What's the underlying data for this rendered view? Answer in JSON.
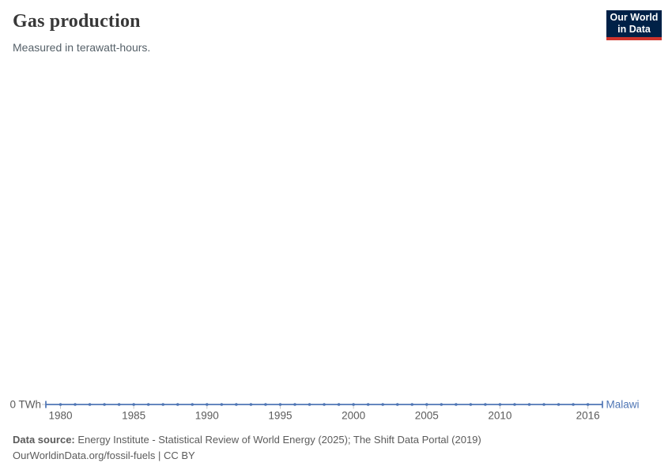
{
  "logo": {
    "line1": "Our World",
    "line2": "in Data",
    "bg_color": "#002147",
    "accent_color": "#d0342c"
  },
  "chart_data": {
    "type": "line",
    "title": "Gas production",
    "subtitle": "Measured in terawatt-hours.",
    "x": [
      1980,
      1981,
      1982,
      1983,
      1984,
      1985,
      1986,
      1987,
      1988,
      1989,
      1990,
      1991,
      1992,
      1993,
      1994,
      1995,
      1996,
      1997,
      1998,
      1999,
      2000,
      2001,
      2002,
      2003,
      2004,
      2005,
      2006,
      2007,
      2008,
      2009,
      2010,
      2011,
      2012,
      2013,
      2014,
      2015,
      2016
    ],
    "series": [
      {
        "name": "Malawi",
        "color": "#4f76b5",
        "values": [
          0,
          0,
          0,
          0,
          0,
          0,
          0,
          0,
          0,
          0,
          0,
          0,
          0,
          0,
          0,
          0,
          0,
          0,
          0,
          0,
          0,
          0,
          0,
          0,
          0,
          0,
          0,
          0,
          0,
          0,
          0,
          0,
          0,
          0,
          0,
          0,
          0
        ]
      }
    ],
    "x_ticks": [
      1980,
      1985,
      1990,
      1995,
      2000,
      2005,
      2010,
      2016
    ],
    "y_tick_labels": [
      "0 TWh"
    ],
    "ylim": [
      0,
      0
    ],
    "xlabel": "",
    "ylabel": "TWh",
    "grid": false,
    "legend_position": "end-of-line-label",
    "marker": "circle",
    "axis_text_color": "#5b5b5b",
    "tick_color": "#c6c6c6"
  },
  "footer": {
    "source_label": "Data source:",
    "source_text": "Energy Institute - Statistical Review of World Energy (2025); The Shift Data Portal (2019)",
    "license": "OurWorldinData.org/fossil-fuels | CC BY"
  }
}
